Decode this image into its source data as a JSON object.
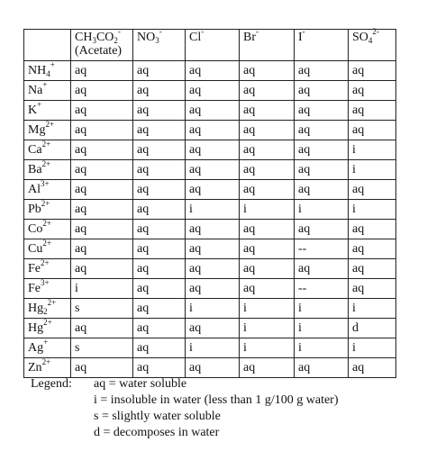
{
  "table": {
    "corner": "",
    "anion_headers": [
      {
        "base": "CH",
        "sub1": "3",
        "mid": "CO",
        "sub2": "2",
        "sup": "-",
        "sub_label": "(Acetate)"
      },
      {
        "base": "NO",
        "sub1": "3",
        "mid": "",
        "sub2": "",
        "sup": "-",
        "sub_label": ""
      },
      {
        "base": "Cl",
        "sub1": "",
        "mid": "",
        "sub2": "",
        "sup": "-",
        "sub_label": ""
      },
      {
        "base": "Br",
        "sub1": "",
        "mid": "",
        "sub2": "",
        "sup": "-",
        "sub_label": ""
      },
      {
        "base": "I",
        "sub1": "",
        "mid": "",
        "sub2": "",
        "sup": "-",
        "sub_label": ""
      },
      {
        "base": "SO",
        "sub1": "4",
        "mid": "",
        "sub2": "",
        "sup": "2-",
        "sub_label": ""
      }
    ],
    "rows": [
      {
        "cation": {
          "base": "NH",
          "sub": "4",
          "sup": "+"
        },
        "cells": [
          "aq",
          "aq",
          "aq",
          "aq",
          "aq",
          "aq"
        ]
      },
      {
        "cation": {
          "base": "Na",
          "sub": "",
          "sup": "+"
        },
        "cells": [
          "aq",
          "aq",
          "aq",
          "aq",
          "aq",
          "aq"
        ]
      },
      {
        "cation": {
          "base": "K",
          "sub": "",
          "sup": "+"
        },
        "cells": [
          "aq",
          "aq",
          "aq",
          "aq",
          "aq",
          "aq"
        ]
      },
      {
        "cation": {
          "base": "Mg",
          "sub": "",
          "sup": "2+"
        },
        "cells": [
          "aq",
          "aq",
          "aq",
          "aq",
          "aq",
          "aq"
        ]
      },
      {
        "cation": {
          "base": "Ca",
          "sub": "",
          "sup": "2+"
        },
        "cells": [
          "aq",
          "aq",
          "aq",
          "aq",
          "aq",
          "i"
        ]
      },
      {
        "cation": {
          "base": "Ba",
          "sub": "",
          "sup": "2+"
        },
        "cells": [
          "aq",
          "aq",
          "aq",
          "aq",
          "aq",
          "i"
        ]
      },
      {
        "cation": {
          "base": "Al",
          "sub": "",
          "sup": "3+"
        },
        "cells": [
          "aq",
          "aq",
          "aq",
          "aq",
          "aq",
          "aq"
        ]
      },
      {
        "cation": {
          "base": "Pb",
          "sub": "",
          "sup": "2+"
        },
        "cells": [
          "aq",
          "aq",
          "i",
          "i",
          "i",
          "i"
        ]
      },
      {
        "cation": {
          "base": "Co",
          "sub": "",
          "sup": "2+"
        },
        "cells": [
          "aq",
          "aq",
          "aq",
          "aq",
          "aq",
          "aq"
        ]
      },
      {
        "cation": {
          "base": "Cu",
          "sub": "",
          "sup": "2+"
        },
        "cells": [
          "aq",
          "aq",
          "aq",
          "aq",
          "--",
          "aq"
        ]
      },
      {
        "cation": {
          "base": "Fe",
          "sub": "",
          "sup": "2+"
        },
        "cells": [
          "aq",
          "aq",
          "aq",
          "aq",
          "aq",
          "aq"
        ]
      },
      {
        "cation": {
          "base": "Fe",
          "sub": "",
          "sup": "3+"
        },
        "cells": [
          "i",
          "aq",
          "aq",
          "aq",
          "--",
          "aq"
        ]
      },
      {
        "cation": {
          "base": "Hg",
          "sub": "2",
          "sup": "2+"
        },
        "cells": [
          "s",
          "aq",
          "i",
          "i",
          "i",
          "i"
        ]
      },
      {
        "cation": {
          "base": "Hg",
          "sub": "",
          "sup": "2+"
        },
        "cells": [
          "aq",
          "aq",
          "aq",
          "i",
          "i",
          "d"
        ]
      },
      {
        "cation": {
          "base": "Ag",
          "sub": "",
          "sup": "+"
        },
        "cells": [
          "s",
          "aq",
          "i",
          "i",
          "i",
          "i"
        ]
      },
      {
        "cation": {
          "base": "Zn",
          "sub": "",
          "sup": "2+"
        },
        "cells": [
          "aq",
          "aq",
          "aq",
          "aq",
          "aq",
          "aq"
        ]
      }
    ]
  },
  "legend": {
    "title": "Legend:",
    "items": [
      "aq = water soluble",
      "i = insoluble in water (less than 1 g/100 g water)",
      "s = slightly water soluble",
      "d = decomposes in water"
    ]
  }
}
